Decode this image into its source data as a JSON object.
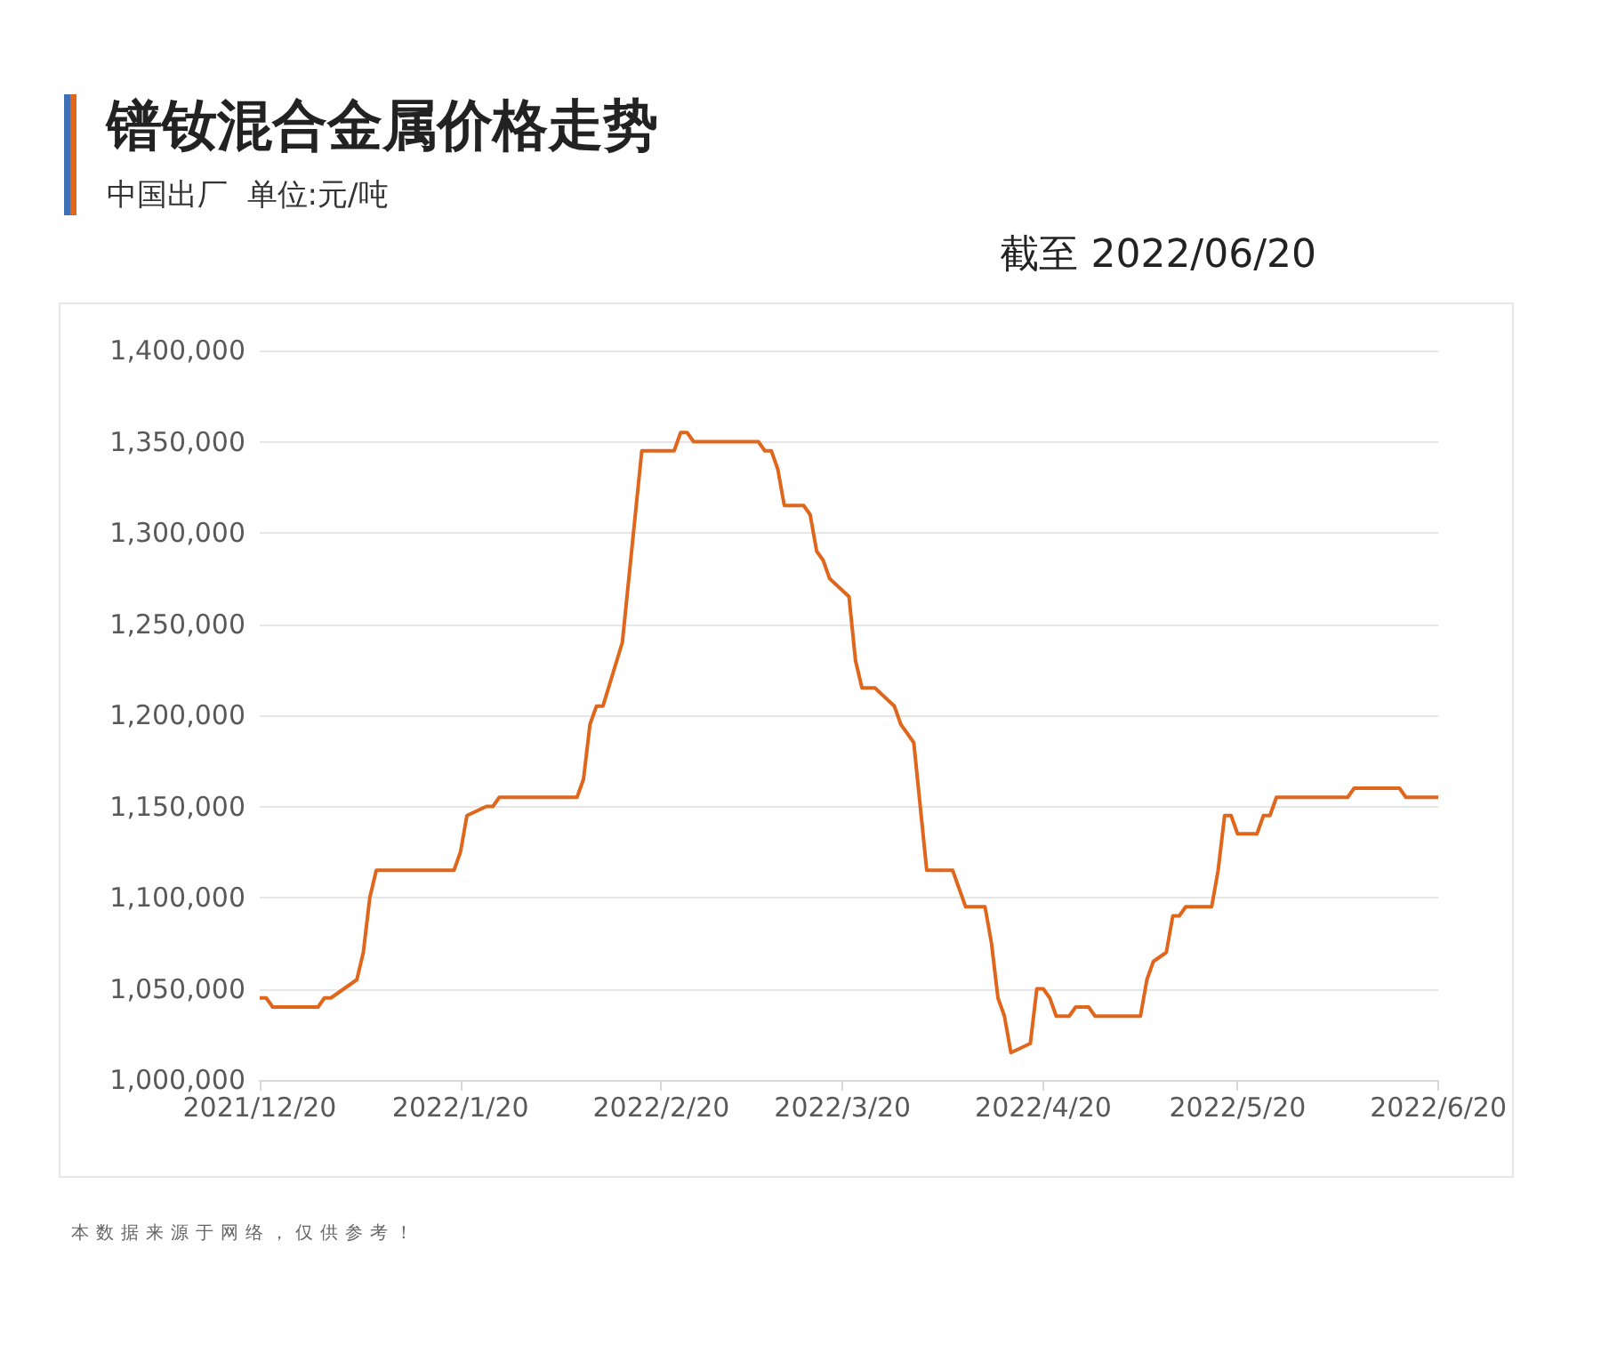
{
  "chart_data": {
    "type": "line",
    "title": "镨钕混合金属价格走势",
    "subtitle": "中国出厂  单位:元/吨",
    "annotations": [
      "截至 2022/06/20",
      "本数据来源于网络，仅供参考！"
    ],
    "x": [
      "2021-12-20",
      "2021-12-21",
      "2021-12-22",
      "2021-12-29",
      "2021-12-30",
      "2021-12-31",
      "2022-01-04",
      "2022-01-05",
      "2022-01-06",
      "2022-01-07",
      "2022-01-19",
      "2022-01-20",
      "2022-01-21",
      "2022-01-24",
      "2022-01-25",
      "2022-01-26",
      "2022-02-07",
      "2022-02-08",
      "2022-02-09",
      "2022-02-10",
      "2022-02-11",
      "2022-02-14",
      "2022-02-17",
      "2022-02-22",
      "2022-02-23",
      "2022-02-24",
      "2022-02-25",
      "2022-03-07",
      "2022-03-08",
      "2022-03-09",
      "2022-03-10",
      "2022-03-11",
      "2022-03-14",
      "2022-03-15",
      "2022-03-16",
      "2022-03-17",
      "2022-03-18",
      "2022-03-21",
      "2022-03-22",
      "2022-03-23",
      "2022-03-25",
      "2022-03-28",
      "2022-03-29",
      "2022-03-31",
      "2022-04-02",
      "2022-04-06",
      "2022-04-08",
      "2022-04-11",
      "2022-04-12",
      "2022-04-13",
      "2022-04-14",
      "2022-04-15",
      "2022-04-18",
      "2022-04-19",
      "2022-04-20",
      "2022-04-21",
      "2022-04-22",
      "2022-04-24",
      "2022-04-25",
      "2022-04-27",
      "2022-04-28",
      "2022-05-05",
      "2022-05-06",
      "2022-05-07",
      "2022-05-09",
      "2022-05-10",
      "2022-05-11",
      "2022-05-12",
      "2022-05-16",
      "2022-05-17",
      "2022-05-18",
      "2022-05-19",
      "2022-05-20",
      "2022-05-23",
      "2022-05-24",
      "2022-05-25",
      "2022-05-26",
      "2022-06-06",
      "2022-06-07",
      "2022-06-14",
      "2022-06-15",
      "2022-06-20"
    ],
    "series": [
      {
        "color": "#e0661c",
        "values": [
          1045000,
          1045000,
          1040000,
          1040000,
          1045000,
          1045000,
          1055000,
          1070000,
          1100000,
          1115000,
          1115000,
          1125000,
          1145000,
          1150000,
          1150000,
          1155000,
          1155000,
          1165000,
          1195000,
          1205000,
          1205000,
          1240000,
          1345000,
          1345000,
          1355000,
          1355000,
          1350000,
          1350000,
          1345000,
          1345000,
          1335000,
          1315000,
          1315000,
          1310000,
          1290000,
          1285000,
          1275000,
          1265000,
          1230000,
          1215000,
          1215000,
          1205000,
          1195000,
          1185000,
          1115000,
          1115000,
          1095000,
          1095000,
          1075000,
          1045000,
          1035000,
          1015000,
          1020000,
          1050000,
          1050000,
          1045000,
          1035000,
          1035000,
          1040000,
          1040000,
          1035000,
          1035000,
          1055000,
          1065000,
          1070000,
          1090000,
          1090000,
          1095000,
          1095000,
          1115000,
          1145000,
          1145000,
          1135000,
          1135000,
          1145000,
          1145000,
          1155000,
          1155000,
          1160000,
          1160000,
          1155000,
          1155000
        ]
      }
    ],
    "xlim": [
      "2021-12-20",
      "2022-06-20"
    ],
    "xticks": [
      {
        "value": "2021-12-20",
        "label": "2021/12/20"
      },
      {
        "value": "2022-01-20",
        "label": "2022/1/20"
      },
      {
        "value": "2022-02-20",
        "label": "2022/2/20"
      },
      {
        "value": "2022-03-20",
        "label": "2022/3/20"
      },
      {
        "value": "2022-04-20",
        "label": "2022/4/20"
      },
      {
        "value": "2022-05-20",
        "label": "2022/5/20"
      },
      {
        "value": "2022-06-20",
        "label": "2022/6/20"
      }
    ],
    "ylim": [
      1000000,
      1400000
    ],
    "yticks": [
      {
        "value": 1000000,
        "label": "1,000,000"
      },
      {
        "value": 1050000,
        "label": "1,050,000"
      },
      {
        "value": 1100000,
        "label": "1,100,000"
      },
      {
        "value": 1150000,
        "label": "1,150,000"
      },
      {
        "value": 1200000,
        "label": "1,200,000"
      },
      {
        "value": 1250000,
        "label": "1,250,000"
      },
      {
        "value": 1300000,
        "label": "1,300,000"
      },
      {
        "value": 1350000,
        "label": "1,350,000"
      },
      {
        "value": 1400000,
        "label": "1,400,000"
      }
    ],
    "grid": "y",
    "marker": "none",
    "line_style": "solid"
  }
}
